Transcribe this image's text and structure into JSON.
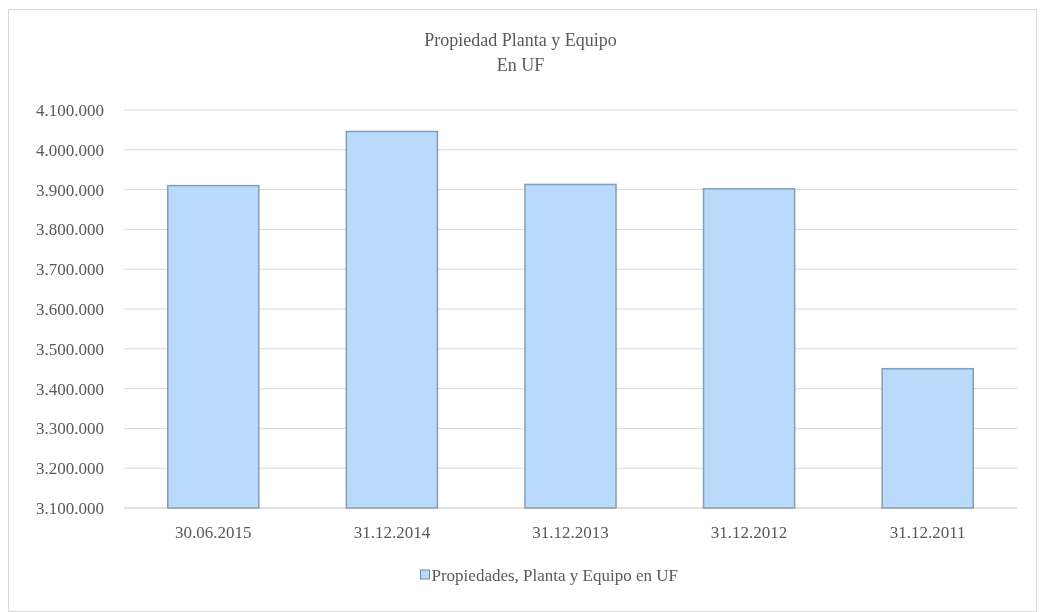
{
  "chart_data": {
    "type": "bar",
    "title": "Propiedad Planta y Equipo",
    "subtitle": "En UF",
    "categories": [
      "30.06.2015",
      "31.12.2014",
      "31.12.2013",
      "31.12.2012",
      "31.12.2011"
    ],
    "series": [
      {
        "name": "Propiedades, Planta y Equipo en UF",
        "color": "#b9dafa",
        "values": [
          3910000,
          4046000,
          3913000,
          3902000,
          3450000
        ]
      }
    ],
    "ylim": [
      3100000,
      4100000
    ],
    "yticks": [
      {
        "value": 3100000,
        "label": "3.100.000"
      },
      {
        "value": 3200000,
        "label": "3.200.000"
      },
      {
        "value": 3300000,
        "label": "3.300.000"
      },
      {
        "value": 3400000,
        "label": "3.400.000"
      },
      {
        "value": 3500000,
        "label": "3.500.000"
      },
      {
        "value": 3600000,
        "label": "3.600.000"
      },
      {
        "value": 3700000,
        "label": "3.700.000"
      },
      {
        "value": 3800000,
        "label": "3.800.000"
      },
      {
        "value": 3900000,
        "label": "3.900.000"
      },
      {
        "value": 4000000,
        "label": "4.000.000"
      },
      {
        "value": 4100000,
        "label": "4.100.000"
      }
    ],
    "grid": "y",
    "legend": "bottom"
  }
}
